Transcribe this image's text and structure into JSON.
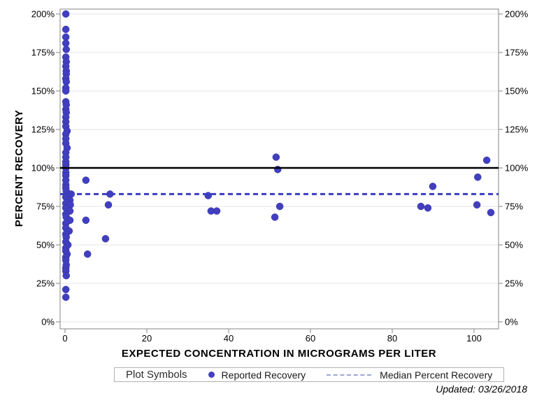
{
  "chart_data": {
    "type": "scatter",
    "title": "",
    "xlabel": "EXPECTED CONCENTRATION IN MICROGRAMS PER LITER",
    "ylabel": "PERCENT RECOVERY",
    "xlim": [
      -1.2,
      106
    ],
    "ylim": [
      -4.5,
      203.2
    ],
    "grid": "horizontal-only",
    "legend_position": "bottom",
    "x_ticks": [
      0,
      20,
      40,
      60,
      80,
      100
    ],
    "x_tick_labels": [
      "0",
      "20",
      "40",
      "60",
      "80",
      "100"
    ],
    "y_ticks": [
      0,
      25,
      50,
      75,
      100,
      125,
      150,
      175,
      200
    ],
    "y_tick_labels": [
      "0%",
      "25%",
      "50%",
      "75%",
      "100%",
      "125%",
      "150%",
      "175%",
      "200%"
    ],
    "y_axis_mirrored": true,
    "series": [
      {
        "name": "Reported Recovery",
        "marker": "filled-circle",
        "color": "#413fc0",
        "points": [
          [
            0.2,
            200
          ],
          [
            0.2,
            190
          ],
          [
            0.2,
            185
          ],
          [
            0.2,
            181
          ],
          [
            0.3,
            177
          ],
          [
            0.2,
            172
          ],
          [
            0.3,
            169
          ],
          [
            0.2,
            166
          ],
          [
            0.3,
            163
          ],
          [
            0.3,
            161
          ],
          [
            0.2,
            158
          ],
          [
            0.3,
            156
          ],
          [
            0.2,
            152
          ],
          [
            0.2,
            150
          ],
          [
            0.2,
            143
          ],
          [
            0.3,
            141
          ],
          [
            0.2,
            138
          ],
          [
            0.3,
            136
          ],
          [
            0.2,
            133
          ],
          [
            0.2,
            130
          ],
          [
            0.2,
            127
          ],
          [
            0.5,
            124
          ],
          [
            0.2,
            122
          ],
          [
            0.2,
            119
          ],
          [
            0.2,
            116
          ],
          [
            0.5,
            113
          ],
          [
            0.2,
            110
          ],
          [
            0.2,
            107
          ],
          [
            0.2,
            104
          ],
          [
            0.2,
            102
          ],
          [
            0.2,
            100
          ],
          [
            0.2,
            97
          ],
          [
            0.2,
            95
          ],
          [
            0.2,
            92
          ],
          [
            0.2,
            89
          ],
          [
            0.2,
            87
          ],
          [
            0.3,
            85
          ],
          [
            1.5,
            83
          ],
          [
            0.2,
            81
          ],
          [
            1.2,
            79
          ],
          [
            0.2,
            77
          ],
          [
            1.3,
            76
          ],
          [
            0.2,
            74
          ],
          [
            1.2,
            72
          ],
          [
            0.2,
            70
          ],
          [
            0.3,
            68
          ],
          [
            1.2,
            66
          ],
          [
            0.2,
            64
          ],
          [
            0.2,
            61
          ],
          [
            1.0,
            59
          ],
          [
            0.2,
            57
          ],
          [
            0.3,
            55
          ],
          [
            0.2,
            52
          ],
          [
            0.7,
            50
          ],
          [
            0.2,
            48
          ],
          [
            0.2,
            46
          ],
          [
            0.5,
            44
          ],
          [
            0.2,
            42
          ],
          [
            0.2,
            40
          ],
          [
            0.3,
            37
          ],
          [
            0.2,
            35
          ],
          [
            0.2,
            33
          ],
          [
            0.3,
            30
          ],
          [
            0.2,
            21
          ],
          [
            0.2,
            16
          ],
          [
            5.1,
            92
          ],
          [
            5.1,
            66
          ],
          [
            5.5,
            44
          ],
          [
            11,
            83
          ],
          [
            10.6,
            76
          ],
          [
            9.9,
            54
          ],
          [
            35,
            82
          ],
          [
            35.7,
            72
          ],
          [
            37.1,
            72
          ],
          [
            51.6,
            107
          ],
          [
            52,
            99
          ],
          [
            52.5,
            75
          ],
          [
            51.3,
            68
          ],
          [
            87,
            75
          ],
          [
            88.7,
            74
          ],
          [
            89.9,
            88
          ],
          [
            100.9,
            94
          ],
          [
            100.7,
            76
          ],
          [
            103.1,
            105
          ],
          [
            104.1,
            71
          ]
        ]
      }
    ],
    "reference_lines": [
      {
        "name": "100 percent reference",
        "y": 100,
        "style": "solid",
        "color": "#000000",
        "width": 2.5
      },
      {
        "name": "Median Percent Recovery",
        "y": 83,
        "style": "dashed",
        "color": "#3b3dc1",
        "width": 3
      }
    ]
  },
  "legend": {
    "title": "Plot Symbols",
    "series_label": "Reported Recovery",
    "median_label": "Median Percent Recovery",
    "marker_color": "#413fc0",
    "median_sample_color": "#9fa6d2"
  },
  "footer": {
    "updated": "Updated: 03/26/2018"
  },
  "colors": {
    "frame": "#868686",
    "grid": "#e4e4e4",
    "tick": "#868686",
    "marker": "#413fc0",
    "marker_edge": "#32309f"
  }
}
